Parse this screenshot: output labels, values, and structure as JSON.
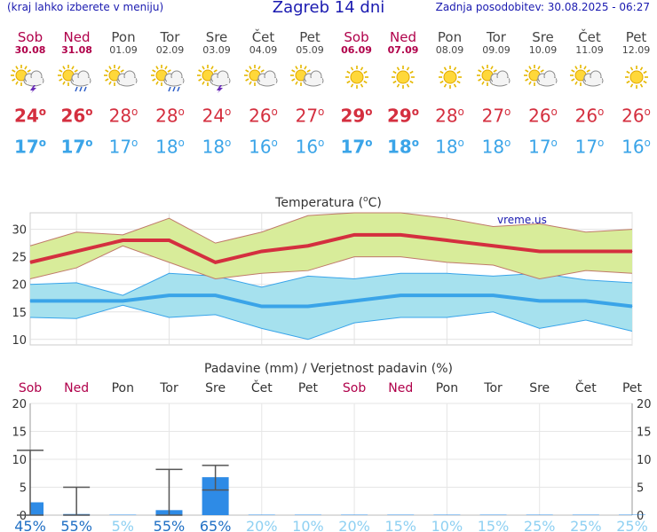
{
  "header": {
    "hint": "(kraj lahko izberete v meniju)",
    "title": "Zagreb 14 dni",
    "updated": "Zadnja posodobitev: 30.08.2025 - 06:27"
  },
  "days": [
    {
      "name": "Sob",
      "date": "30.08",
      "weekend": true,
      "icon": "sun-cloud-thunder-icon",
      "max": "24",
      "min": "17"
    },
    {
      "name": "Ned",
      "date": "31.08",
      "weekend": true,
      "icon": "sun-cloud-rain-icon",
      "max": "26",
      "min": "17"
    },
    {
      "name": "Pon",
      "date": "01.09",
      "weekend": false,
      "icon": "sun-cloud-icon",
      "max": "28",
      "min": "17"
    },
    {
      "name": "Tor",
      "date": "02.09",
      "weekend": false,
      "icon": "sun-cloud-rain-icon",
      "max": "28",
      "min": "18"
    },
    {
      "name": "Sre",
      "date": "03.09",
      "weekend": false,
      "icon": "sun-cloud-thunder-icon",
      "max": "24",
      "min": "18"
    },
    {
      "name": "Čet",
      "date": "04.09",
      "weekend": false,
      "icon": "sun-cloud-icon",
      "max": "26",
      "min": "16"
    },
    {
      "name": "Pet",
      "date": "05.09",
      "weekend": false,
      "icon": "sun-cloud-icon",
      "max": "27",
      "min": "16"
    },
    {
      "name": "Sob",
      "date": "06.09",
      "weekend": true,
      "icon": "sun-icon",
      "max": "29",
      "min": "17"
    },
    {
      "name": "Ned",
      "date": "07.09",
      "weekend": true,
      "icon": "sun-icon",
      "max": "29",
      "min": "18"
    },
    {
      "name": "Pon",
      "date": "08.09",
      "weekend": false,
      "icon": "sun-icon",
      "max": "28",
      "min": "18"
    },
    {
      "name": "Tor",
      "date": "09.09",
      "weekend": false,
      "icon": "sun-cloud-icon",
      "max": "27",
      "min": "18"
    },
    {
      "name": "Sre",
      "date": "10.09",
      "weekend": false,
      "icon": "sun-cloud-icon",
      "max": "26",
      "min": "17"
    },
    {
      "name": "Čet",
      "date": "11.09",
      "weekend": false,
      "icon": "sun-cloud-icon",
      "max": "26",
      "min": "17"
    },
    {
      "name": "Pet",
      "date": "12.09",
      "weekend": false,
      "icon": "sun-icon",
      "max": "26",
      "min": "16"
    }
  ],
  "colors": {
    "max": "#d42f3f",
    "min": "#3aa4e8",
    "weekend": "#b0004a",
    "bar": "#2e8be6",
    "maxband": "#d8ec9a",
    "minband": "#a6e1ee"
  },
  "chart_data": [
    {
      "type": "area",
      "title": "Temperatura (°C)",
      "title_pre": "Temperatura (",
      "title_unit": "C)",
      "watermark": "vreme.us",
      "ylim": [
        9,
        33
      ],
      "yticks": [
        10,
        15,
        20,
        25,
        30
      ],
      "grid": true,
      "series": [
        {
          "values": [
            24,
            26,
            28,
            28,
            24,
            26,
            27,
            29,
            29,
            28,
            27,
            26,
            26,
            26
          ]
        },
        {
          "values": [
            17,
            17,
            17,
            18,
            18,
            16,
            16,
            17,
            18,
            18,
            18,
            17,
            17,
            16
          ]
        }
      ],
      "max_band_upper": [
        27,
        29.5,
        29,
        32,
        27.5,
        29.5,
        32.5,
        33,
        33,
        32,
        30.5,
        31,
        29.5,
        30
      ],
      "max_band_lower": [
        21,
        23,
        27,
        24,
        21,
        22,
        22.5,
        25,
        25,
        24,
        23.5,
        21,
        22.5,
        22
      ],
      "min_band_upper": [
        20,
        20.3,
        18,
        22,
        21.5,
        19.5,
        21.5,
        21,
        22,
        22,
        21.5,
        22,
        20.8,
        20.3
      ],
      "min_band_lower": [
        14,
        13.8,
        16.2,
        14,
        14.5,
        12,
        10,
        13,
        14,
        14,
        15,
        12,
        13.5,
        11.5
      ]
    },
    {
      "type": "bar",
      "title": "Padavine (mm) / Verjetnost padavin (%)",
      "day_labels": [
        "Sob",
        "Ned",
        "Pon",
        "Tor",
        "Sre",
        "Čet",
        "Pet",
        "Sob",
        "Ned",
        "Pon",
        "Tor",
        "Sre",
        "Čet",
        "Pet"
      ],
      "weekend": [
        true,
        true,
        false,
        false,
        false,
        false,
        false,
        true,
        true,
        false,
        false,
        false,
        false,
        false
      ],
      "ylim": [
        0,
        20
      ],
      "yticks": [
        0,
        5,
        10,
        15,
        20
      ],
      "values": [
        2.3,
        0.2,
        0,
        0.9,
        6.8,
        0,
        0,
        0,
        0,
        0,
        0,
        0,
        0,
        0
      ],
      "error_high": [
        11.6,
        5,
        0,
        8.2,
        8.9,
        0,
        0,
        0,
        0,
        0,
        0,
        0,
        0,
        0
      ],
      "error_low": [
        0,
        0,
        0,
        0,
        4.5,
        0,
        0,
        0,
        0,
        0,
        0,
        0,
        0,
        0
      ],
      "probabilities": [
        "45%",
        "55%",
        "5%",
        "55%",
        "65%",
        "20%",
        "10%",
        "20%",
        "15%",
        "10%",
        "15%",
        "25%",
        "25%",
        "25%"
      ]
    }
  ]
}
